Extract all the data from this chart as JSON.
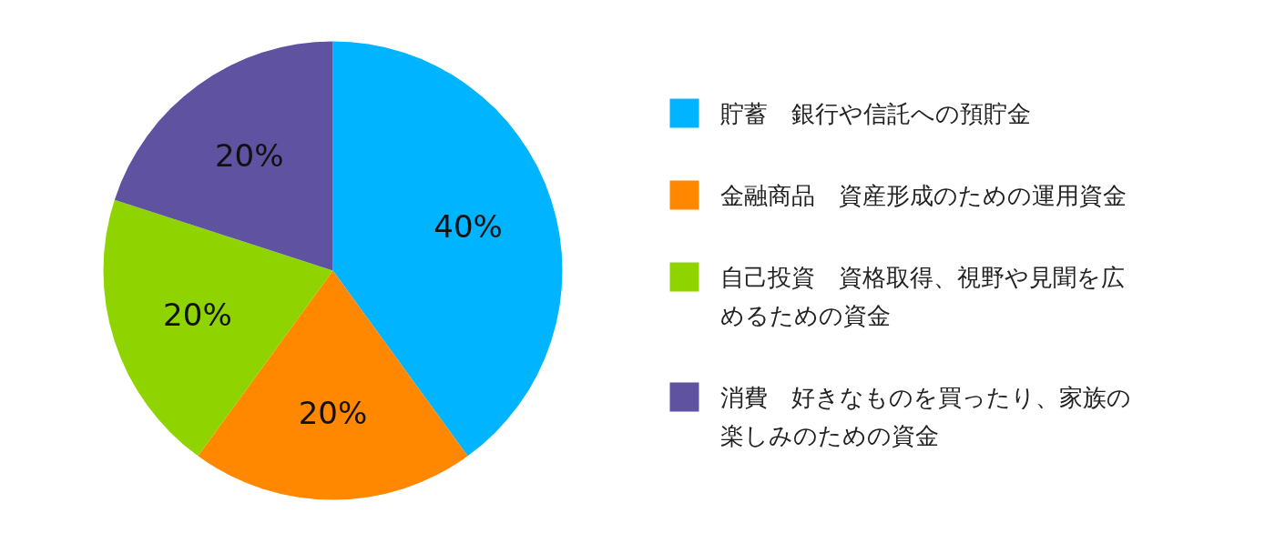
{
  "chart_data": {
    "type": "pie",
    "categories": [
      "貯蓄　銀行や信託への預貯金",
      "金融商品　資産形成のための運用資金",
      "自己投資　資格取得、視野や見聞を広めるための資金",
      "消費　好きなものを買ったり、家族の楽しみのための資金"
    ],
    "values": [
      40,
      20,
      20,
      20
    ],
    "colors": [
      "#00b4ff",
      "#ff8800",
      "#8fd400",
      "#5f52a0"
    ],
    "value_labels": [
      "40%",
      "20%",
      "20%",
      "20%"
    ],
    "legend": "right"
  }
}
